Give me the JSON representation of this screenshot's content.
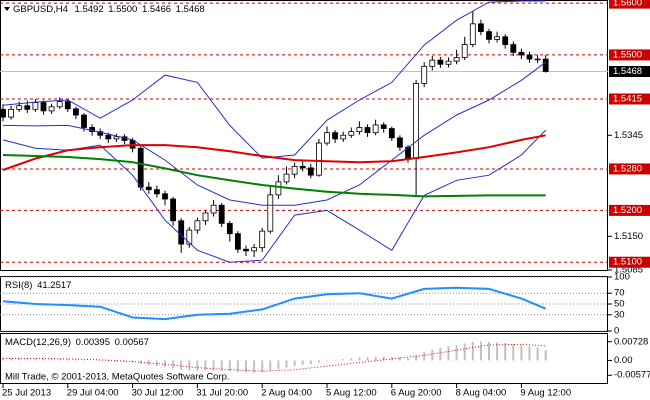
{
  "chart_data": [
    {
      "type": "candlestick",
      "title": "GBPUSD,H4",
      "header_values": [
        1.5492,
        {
          "value": 1.55,
          "label": "1.5500"
        },
        1.5466,
        1.5468
      ],
      "categories": [
        "25 Jul 2013",
        null,
        null,
        null,
        null,
        null,
        null,
        null,
        "29 Jul 04:00",
        null,
        null,
        null,
        null,
        null,
        null,
        null,
        "30 Jul 12:00",
        null,
        null,
        null,
        null,
        null,
        null,
        null,
        "31 Jul 20:00",
        null,
        null,
        null,
        null,
        null,
        null,
        null,
        "2 Aug 04:00",
        null,
        null,
        null,
        null,
        null,
        null,
        null,
        "5 Aug 12:00",
        null,
        null,
        null,
        null,
        null,
        null,
        null,
        "6 Aug 20:00",
        null,
        null,
        null,
        null,
        null,
        null,
        null,
        "8 Aug 04:00",
        null,
        null,
        null,
        null,
        null,
        null,
        null,
        "9 Aug 12:00",
        null,
        null,
        null
      ],
      "open": [
        1.5395,
        1.538,
        1.5395,
        1.5402,
        1.5395,
        1.5408,
        1.5392,
        1.54,
        1.541,
        1.5396,
        1.5384,
        1.536,
        1.5352,
        1.5345,
        1.5338,
        1.5342,
        1.5335,
        1.532,
        1.5245,
        1.524,
        1.5232,
        1.5222,
        1.518,
        1.5135,
        1.5162,
        1.518,
        1.5195,
        1.521,
        1.5175,
        1.5155,
        1.5125,
        1.5122,
        1.5128,
        1.516,
        1.523,
        1.5255,
        1.527,
        1.5285,
        1.5282,
        1.5268,
        1.533,
        1.535,
        1.5338,
        1.5345,
        1.5352,
        1.536,
        1.535,
        1.5365,
        1.5358,
        1.534,
        1.5322,
        1.53,
        1.5445,
        1.5478,
        1.549,
        1.5482,
        1.5488,
        1.5495,
        1.552,
        1.556,
        1.5545,
        1.553,
        1.5535,
        1.552,
        1.5505,
        1.55,
        1.5492,
        1.5492
      ],
      "high": [
        1.5405,
        1.5402,
        1.541,
        1.5412,
        1.5415,
        1.5412,
        1.5406,
        1.5418,
        1.5414,
        1.54,
        1.5388,
        1.5366,
        1.5358,
        1.535,
        1.5348,
        1.5347,
        1.534,
        1.5324,
        1.5255,
        1.5248,
        1.5238,
        1.5226,
        1.5185,
        1.5168,
        1.5186,
        1.52,
        1.522,
        1.5214,
        1.518,
        1.516,
        1.5132,
        1.5135,
        1.5166,
        1.5245,
        1.5268,
        1.5285,
        1.5292,
        1.5295,
        1.529,
        1.5338,
        1.5362,
        1.5355,
        1.5352,
        1.536,
        1.5372,
        1.5366,
        1.5375,
        1.537,
        1.5362,
        1.5345,
        1.5326,
        1.5452,
        1.5486,
        1.5498,
        1.5496,
        1.5495,
        1.551,
        1.5535,
        1.5585,
        1.5568,
        1.555,
        1.5545,
        1.554,
        1.5526,
        1.5512,
        1.5506,
        1.55,
        1.55
      ],
      "low": [
        1.5372,
        1.5375,
        1.539,
        1.5388,
        1.539,
        1.5385,
        1.5386,
        1.5396,
        1.539,
        1.5376,
        1.5352,
        1.5344,
        1.5338,
        1.533,
        1.5332,
        1.5328,
        1.5312,
        1.5238,
        1.5232,
        1.5225,
        1.521,
        1.517,
        1.5118,
        1.5128,
        1.5155,
        1.5172,
        1.5188,
        1.5168,
        1.514,
        1.5118,
        1.5112,
        1.511,
        1.512,
        1.5155,
        1.5222,
        1.525,
        1.5262,
        1.5275,
        1.5262,
        1.5265,
        1.5325,
        1.533,
        1.5332,
        1.534,
        1.5346,
        1.5342,
        1.5345,
        1.535,
        1.5334,
        1.5315,
        1.5292,
        1.523,
        1.5438,
        1.547,
        1.5475,
        1.5476,
        1.5482,
        1.549,
        1.5515,
        1.5538,
        1.5522,
        1.5524,
        1.5512,
        1.5498,
        1.5492,
        1.5485,
        1.5484,
        1.5466
      ],
      "close": [
        1.538,
        1.5395,
        1.5402,
        1.5395,
        1.5408,
        1.5392,
        1.54,
        1.541,
        1.5396,
        1.5384,
        1.536,
        1.5352,
        1.5345,
        1.5338,
        1.5342,
        1.5335,
        1.532,
        1.5245,
        1.524,
        1.5232,
        1.5222,
        1.518,
        1.5135,
        1.5162,
        1.518,
        1.5195,
        1.521,
        1.5175,
        1.5155,
        1.5125,
        1.5122,
        1.5128,
        1.516,
        1.523,
        1.5255,
        1.527,
        1.5285,
        1.5282,
        1.5268,
        1.533,
        1.535,
        1.5338,
        1.5345,
        1.5352,
        1.536,
        1.535,
        1.5365,
        1.5358,
        1.534,
        1.5322,
        1.53,
        1.5445,
        1.5478,
        1.549,
        1.5482,
        1.5488,
        1.5495,
        1.552,
        1.556,
        1.5545,
        1.553,
        1.5535,
        1.552,
        1.5505,
        1.55,
        1.5492,
        1.5492,
        1.5468
      ],
      "up_color": "#ffffff",
      "down_color": "#000000",
      "wick_color": "#000000",
      "line_x": [
        0,
        4,
        8,
        12,
        16,
        20,
        24,
        28,
        32,
        36,
        40,
        44,
        48,
        52,
        56,
        60,
        64,
        67
      ],
      "lines": [
        {
          "color": "#2430c8",
          "width": 1,
          "values": [
            1.5403,
            1.5409,
            1.5413,
            1.5378,
            1.5413,
            1.5461,
            1.5447,
            1.5364,
            1.5301,
            1.5307,
            1.5374,
            1.5413,
            1.5447,
            1.5519,
            1.5567,
            1.5602,
            1.5604,
            1.5604
          ]
        },
        {
          "color": "#2430c8",
          "width": 1,
          "values": [
            1.5364,
            1.5363,
            1.5364,
            1.5351,
            1.5336,
            1.5297,
            1.5249,
            1.522,
            1.521,
            1.521,
            1.522,
            1.5249,
            1.5297,
            1.5345,
            1.5384,
            1.5413,
            1.5451,
            1.5486
          ]
        },
        {
          "color": "#2430c8",
          "width": 1,
          "values": [
            1.5336,
            1.532,
            1.5316,
            1.5326,
            1.5268,
            1.5181,
            1.5123,
            1.51,
            1.5104,
            1.5191,
            1.52,
            1.5162,
            1.5123,
            1.5229,
            1.5258,
            1.5268,
            1.5307,
            1.5355
          ]
        },
        {
          "color": "#e00000",
          "width": 2,
          "values": [
            1.5278,
            1.53,
            1.5316,
            1.5322,
            1.5326,
            1.5326,
            1.5322,
            1.5314,
            1.5305,
            1.5297,
            1.5295,
            1.5293,
            1.5295,
            1.5303,
            1.5312,
            1.5322,
            1.5336,
            1.5345
          ]
        },
        {
          "color": "#008000",
          "width": 2,
          "values": [
            1.5307,
            1.5305,
            1.5303,
            1.5299,
            1.5293,
            1.5281,
            1.5268,
            1.5258,
            1.5249,
            1.5242,
            1.5236,
            1.5232,
            1.523,
            1.5227,
            1.5228,
            1.5229,
            1.5229,
            1.5229
          ]
        }
      ],
      "ylim": [
        1.5085,
        1.5606
      ],
      "yticks": [
        1.5345,
        {
          "value": 1.515,
          "label": "1.5150"
        },
        1.5085
      ],
      "levels": [
        {
          "value": 1.56,
          "label": "1.5600"
        },
        {
          "value": 1.55,
          "label": "1.5500"
        },
        1.5415,
        {
          "value": 1.528,
          "label": "1.5280"
        },
        {
          "value": 1.52,
          "label": "1.5200"
        },
        {
          "value": 1.51,
          "label": "1.5100"
        }
      ],
      "level_color": "#c80000",
      "current_price": 1.5468
    },
    {
      "type": "line",
      "title": "RSI(8)",
      "current": 41.2517,
      "color": "#1e90ff",
      "x": [
        0,
        4,
        8,
        12,
        16,
        20,
        24,
        28,
        32,
        36,
        40,
        44,
        48,
        52,
        56,
        60,
        64,
        67
      ],
      "values": [
        55,
        50,
        48,
        45,
        25,
        22,
        30,
        32,
        40,
        60,
        68,
        70,
        60,
        78,
        80,
        78,
        60,
        41.2517
      ],
      "ylim": [
        0,
        100
      ],
      "yticks": [
        100,
        70,
        50,
        30,
        0
      ],
      "grid": true
    },
    {
      "type": "bar",
      "title": "MACD(12,26,9)",
      "current": [
        0.00395,
        0.00567
      ],
      "color": "#c0c0c0",
      "values": [
        0.001,
        0.0009,
        0.0009,
        0.0008,
        0.0008,
        0.0007,
        0.0006,
        0.0006,
        0.0005,
        0.0004,
        0.0002,
        0,
        -0.0002,
        -0.0004,
        -0.0005,
        -0.0006,
        -0.0008,
        -0.0014,
        -0.0018,
        -0.0022,
        -0.0026,
        -0.0031,
        -0.0037,
        -0.0039,
        -0.004,
        -0.004,
        -0.0039,
        -0.004,
        -0.0042,
        -0.0045,
        -0.0047,
        -0.0048,
        -0.0046,
        -0.004,
        -0.0034,
        -0.0028,
        -0.0022,
        -0.0018,
        -0.0015,
        -0.0008,
        -0.0002,
        0.0002,
        0.0005,
        0.0008,
        0.0011,
        0.0012,
        0.0014,
        0.0015,
        0.0014,
        0.0012,
        0.0009,
        0.002,
        0.0032,
        0.0042,
        0.0049,
        0.0055,
        0.006,
        0.0066,
        0.0072,
        0.0073,
        0.0072,
        0.007,
        0.0068,
        0.0064,
        0.006,
        0.0055,
        0.005,
        0.00395
      ],
      "signal": {
        "color": "#e00000",
        "x": [
          0,
          4,
          8,
          12,
          16,
          20,
          24,
          28,
          32,
          36,
          40,
          44,
          48,
          52,
          56,
          60,
          64,
          67
        ],
        "values": [
          0.0008,
          0.0008,
          0.0006,
          0.0002,
          -0.0004,
          -0.0015,
          -0.0028,
          -0.0036,
          -0.0042,
          -0.0036,
          -0.0022,
          -0.0008,
          0.0006,
          0.002,
          0.004,
          0.006,
          0.0063,
          0.00567
        ]
      },
      "ylim": [
        -0.0088,
        0.0103
      ],
      "yticks": [
        0.00728,
        {
          "value": 0,
          "label": "0.00"
        },
        -0.00577
      ],
      "annotation": "Mill Trade, © 2001-2013, MetaQuotes Software Corp."
    }
  ]
}
